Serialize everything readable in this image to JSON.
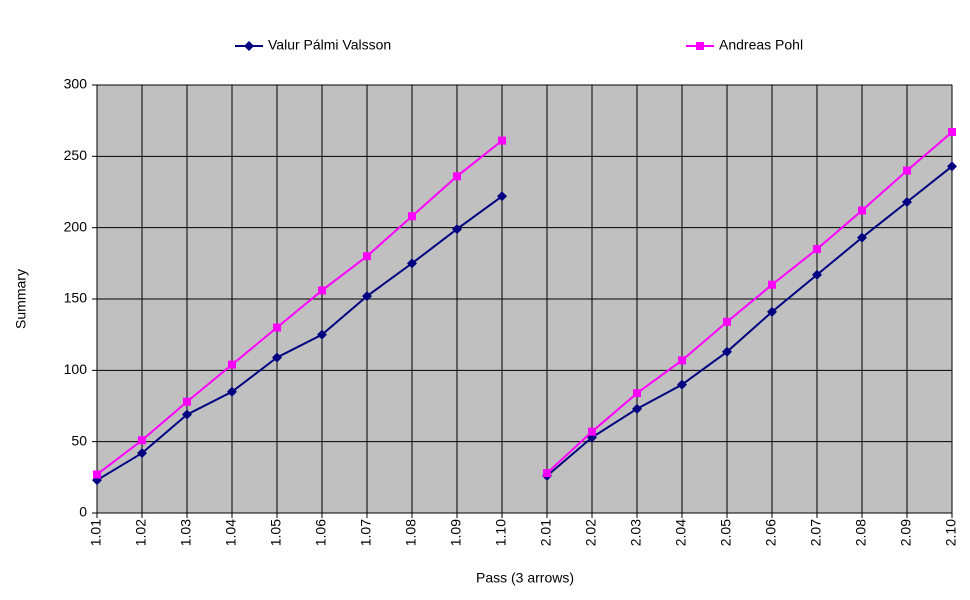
{
  "chart_data": {
    "type": "line",
    "x_label": "Pass (3 arrows)",
    "y_label": "Summary",
    "categories": [
      "1.01",
      "1.02",
      "1.03",
      "1.04",
      "1.05",
      "1.06",
      "1.07",
      "1.08",
      "1.09",
      "1.10",
      "2.01",
      "2.02",
      "2.03",
      "2.04",
      "2.05",
      "2.06",
      "2.07",
      "2.08",
      "2.09",
      "2.10"
    ],
    "series": [
      {
        "name": "Valur Pálmi Valsson",
        "color": "#000080",
        "marker": "diamond",
        "values": [
          23,
          42,
          69,
          85,
          109,
          125,
          152,
          175,
          199,
          222,
          null,
          null,
          null,
          null,
          null,
          null,
          null,
          null,
          null,
          null
        ]
      },
      {
        "name": "Andreas Pohl",
        "color": "#ff00ff",
        "marker": "square",
        "values": [
          27,
          51,
          78,
          104,
          130,
          156,
          180,
          208,
          236,
          261,
          null,
          null,
          null,
          null,
          null,
          null,
          null,
          null,
          null,
          null
        ]
      },
      {
        "name": "Valur Pálmi Valsson",
        "color": "#000080",
        "marker": "diamond",
        "values": [
          null,
          null,
          null,
          null,
          null,
          null,
          null,
          null,
          null,
          null,
          26,
          53,
          73,
          90,
          113,
          141,
          167,
          193,
          218,
          243
        ]
      },
      {
        "name": "Andreas Pohl",
        "color": "#ff00ff",
        "marker": "square",
        "values": [
          null,
          null,
          null,
          null,
          null,
          null,
          null,
          null,
          null,
          null,
          28,
          57,
          84,
          107,
          134,
          160,
          185,
          212,
          240,
          267
        ]
      }
    ],
    "ylim": [
      0,
      300
    ],
    "yticks": [
      0,
      50,
      100,
      150,
      200,
      250,
      300
    ],
    "grid": true,
    "plot_background": "#c0c0c0"
  }
}
